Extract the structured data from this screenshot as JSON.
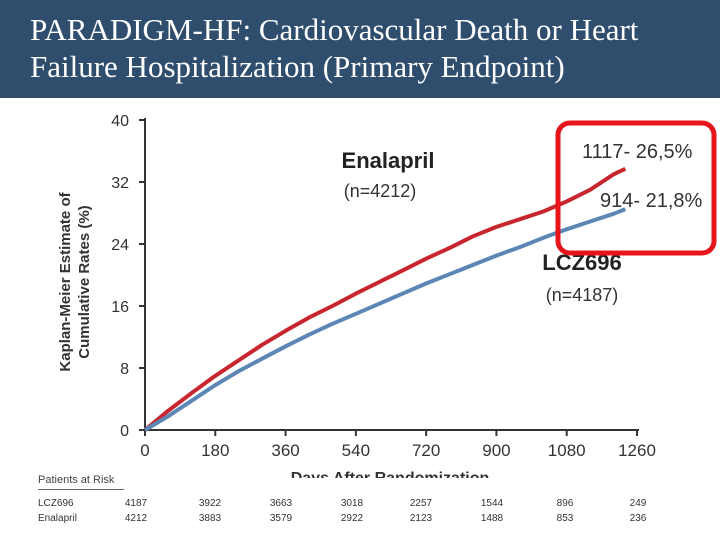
{
  "slide": {
    "title_line1": "PARADIGM-HF: Cardiovascular Death or Heart",
    "title_line2": "Failure Hospitalization (Primary Endpoint)",
    "colors": {
      "title_bar": "#2f4d6d",
      "enalapril": "#c8262e",
      "lcz696": "#5b86b6",
      "highlight": "#e8141c"
    }
  },
  "chart_data": {
    "type": "line",
    "ylabel": [
      "Kaplan-Meier Estimate of",
      "Cumulative Rates (%)"
    ],
    "xlabel": "Days After Randomization",
    "xlim": [
      0,
      1260
    ],
    "ylim": [
      0,
      40
    ],
    "xticks": [
      0,
      180,
      360,
      540,
      720,
      900,
      1080,
      1260
    ],
    "yticks": [
      0,
      8,
      16,
      24,
      32,
      40
    ],
    "series": [
      {
        "name": "Enalapril",
        "n_label": "(n=4212)",
        "end_label": "1117- 26,5%",
        "x": [
          0,
          60,
          120,
          180,
          240,
          300,
          360,
          420,
          480,
          540,
          600,
          660,
          720,
          780,
          840,
          900,
          960,
          1020,
          1080,
          1140,
          1200,
          1230
        ],
        "y": [
          0,
          2.5,
          4.8,
          7,
          9,
          11,
          12.8,
          14.5,
          16,
          17.6,
          19.1,
          20.6,
          22.1,
          23.5,
          25,
          26.2,
          27.2,
          28.2,
          29.5,
          31,
          33,
          33.7
        ]
      },
      {
        "name": "LCZ696",
        "n_label": "(n=4187)",
        "end_label": "914- 21,8%",
        "x": [
          0,
          60,
          120,
          180,
          240,
          300,
          360,
          420,
          480,
          540,
          600,
          660,
          720,
          780,
          840,
          900,
          960,
          1020,
          1080,
          1140,
          1200,
          1230
        ],
        "y": [
          0,
          1.8,
          3.8,
          5.8,
          7.6,
          9.2,
          10.8,
          12.3,
          13.7,
          15,
          16.3,
          17.6,
          18.9,
          20.1,
          21.3,
          22.5,
          23.6,
          24.8,
          25.9,
          26.9,
          27.9,
          28.5
        ]
      }
    ]
  },
  "risk_table": {
    "title": "Patients at Risk",
    "rows": [
      {
        "name": "LCZ696",
        "values": [
          "4187",
          "3922",
          "3663",
          "3018",
          "2257",
          "1544",
          "896",
          "249"
        ]
      },
      {
        "name": "Enalapril",
        "values": [
          "4212",
          "3883",
          "3579",
          "2922",
          "2123",
          "1488",
          "853",
          "236"
        ]
      }
    ]
  }
}
